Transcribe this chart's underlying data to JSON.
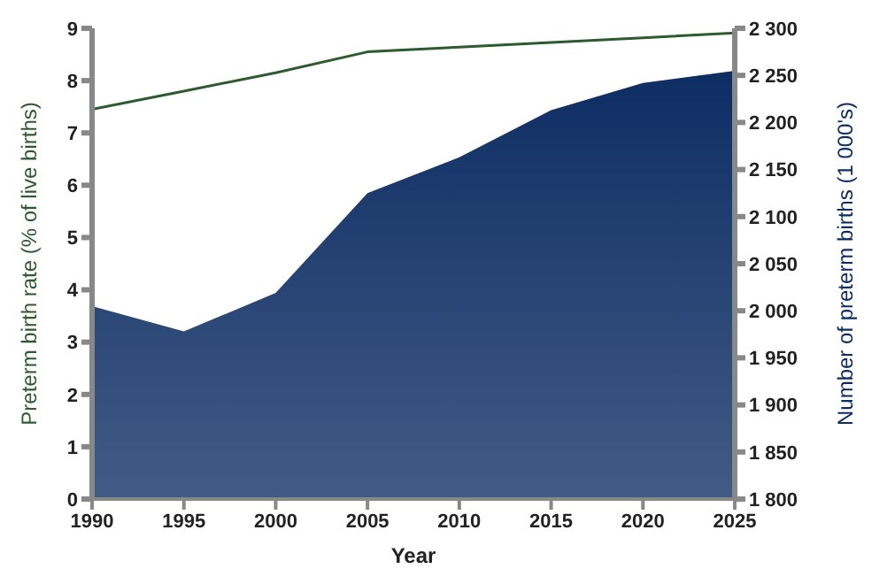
{
  "chart_data": {
    "type": "line",
    "xlabel": "Year",
    "ylabel": "Preterm birth rate (% of live births)",
    "y2label": "Number of preterm births (1 000's)",
    "x": [
      1990,
      1995,
      2000,
      2005,
      2010,
      2015,
      2020,
      2025
    ],
    "series": [
      {
        "type": "area",
        "axis": "y2",
        "color": "#0d2d63",
        "values": [
          2005,
          1978,
          2019,
          2125,
          2163,
          2213,
          2242,
          2255
        ]
      },
      {
        "color": "#2d5a2e",
        "values": [
          7.45,
          7.8,
          8.15,
          8.55,
          8.64,
          8.73,
          8.82,
          8.91
        ]
      }
    ],
    "xlim": [
      1990,
      2025
    ],
    "xticks": [
      1990,
      1995,
      2000,
      2005,
      2010,
      2015,
      2020,
      2025
    ],
    "ylim": [
      0,
      9
    ],
    "yticks": [
      0,
      1,
      2,
      3,
      4,
      5,
      6,
      7,
      8,
      9
    ],
    "y2lim": [
      1800,
      2300
    ],
    "y2ticks": [
      {
        "value": 1800,
        "label": "1 800"
      },
      {
        "value": 1850,
        "label": "1 850"
      },
      {
        "value": 1900,
        "label": "1 900"
      },
      {
        "value": 1950,
        "label": "1 950"
      },
      {
        "value": 2000,
        "label": "2 000"
      },
      {
        "value": 2050,
        "label": "2 050"
      },
      {
        "value": 2100,
        "label": "2 100"
      },
      {
        "value": 2150,
        "label": "2 150"
      },
      {
        "value": 2200,
        "label": "2 200"
      },
      {
        "value": 2250,
        "label": "2 250"
      },
      {
        "value": 2300,
        "label": "2 300"
      }
    ],
    "grid": false,
    "legend": false,
    "marker": "none",
    "line_style": "solid"
  }
}
